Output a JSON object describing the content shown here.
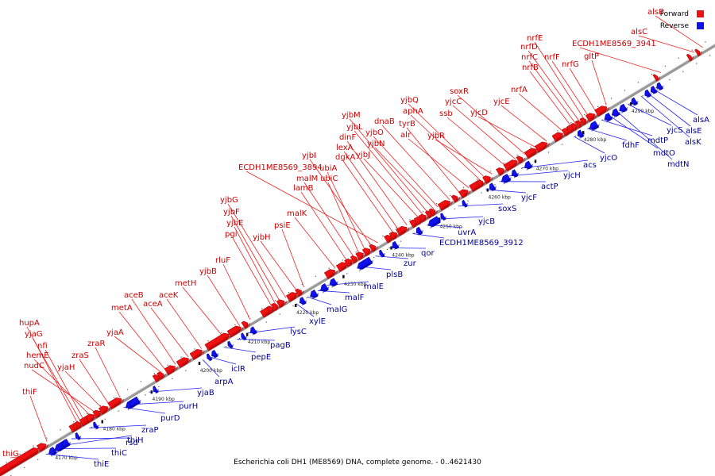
{
  "caption": "Escherichia coli DH1 (ME8569) DNA, complete genome. - 0..4621430",
  "legend": [
    {
      "label": "Forward",
      "color": "#ee1111"
    },
    {
      "label": "Reverse",
      "color": "#1111ee"
    }
  ],
  "colors": {
    "forward": "#ee1111",
    "reverse": "#1111ee",
    "backbone": "#888888",
    "forward_label": "#cc0000",
    "reverse_label": "#000099"
  },
  "ticks": [
    "4170 kbp",
    "4180 kbp",
    "4190 kbp",
    "4200 kbp",
    "4210 kbp",
    "4220 kbp",
    "4230 kbp",
    "4240 kbp",
    "4250 kbp",
    "4260 kbp",
    "4270 kbp",
    "4280 kbp",
    "4290 kbp"
  ],
  "forward_genes": [
    "thiG",
    "thiF",
    "hupA",
    "yjaG",
    "nfi",
    "hemE",
    "nudC",
    "yjaH",
    "zraS",
    "zraR",
    "yjaA",
    "metA",
    "aceB",
    "aceA",
    "aceK",
    "metH",
    "yjbB",
    "rluF",
    "pgi",
    "yjbE",
    "yjbF",
    "yjbG",
    "yjbH",
    "psiE",
    "malK",
    "lamB",
    "malM",
    "ubiC",
    "ubiA",
    "yjbI",
    "ECDH1ME8569_3894",
    "dgkA",
    "lexA",
    "dinF",
    "yjbJ",
    "yjbL",
    "yjbM",
    "yjbN",
    "yjbO",
    "dnaB",
    "tyrB",
    "alr",
    "aphA",
    "yjbQ",
    "yjbR",
    "ssb",
    "yjcC",
    "soxR",
    "yjcD",
    "yjcE",
    "nrfA",
    "nrfB",
    "nrfC",
    "nrfD",
    "nrfE",
    "nrfF",
    "nrfG",
    "gltP",
    "ECDH1ME8569_3941",
    "alsC",
    "alsB"
  ],
  "reverse_genes": [
    "thiE",
    "thiC",
    "thiH",
    "rsd",
    "zraP",
    "purD",
    "purH",
    "yjaB",
    "arpA",
    "iclR",
    "pepE",
    "pagB",
    "lysC",
    "xylE",
    "malG",
    "malF",
    "malE",
    "plsB",
    "zur",
    "qor",
    "ECDH1ME8569_3912",
    "uvrA",
    "yjcB",
    "soxS",
    "yjcF",
    "actP",
    "yjcH",
    "acs",
    "yjcO",
    "fdhF",
    "mdtP",
    "mdtO",
    "mdtN",
    "yjcS",
    "alsK",
    "alsE",
    "alsA"
  ]
}
